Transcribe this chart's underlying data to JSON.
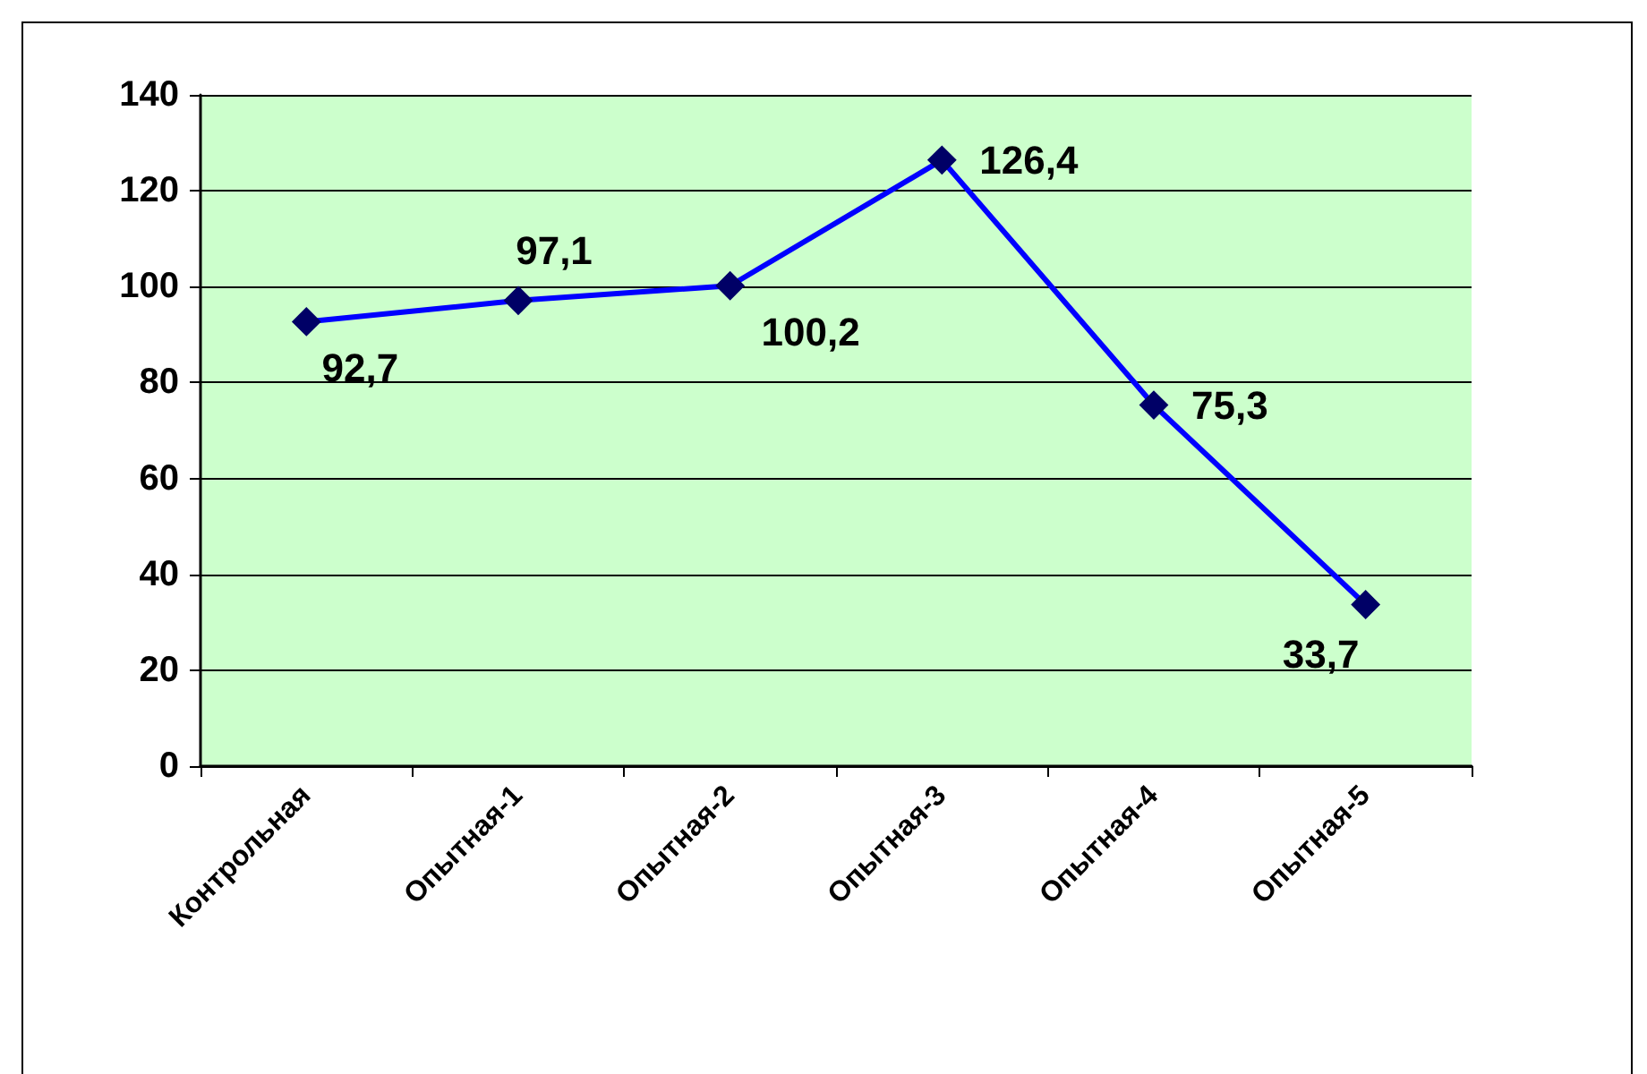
{
  "chart_data": {
    "type": "line",
    "categories": [
      "Контрольная",
      "Опытная-1",
      "Опытная-2",
      "Опытная-3",
      "Опытная-4",
      "Опытная-5"
    ],
    "series": [
      {
        "color": "#0000ff",
        "values": [
          92.7,
          97.1,
          100.2,
          126.4,
          75.3,
          33.7
        ],
        "value_labels": [
          "92,7",
          "97,1",
          "100,2",
          "126,4",
          "75,3",
          "33,7"
        ]
      }
    ],
    "ylim": [
      0,
      140
    ],
    "yticks": [
      0,
      20,
      40,
      60,
      80,
      100,
      120,
      140
    ],
    "grid": "y",
    "marker": "diamond",
    "line_style": "solid"
  }
}
